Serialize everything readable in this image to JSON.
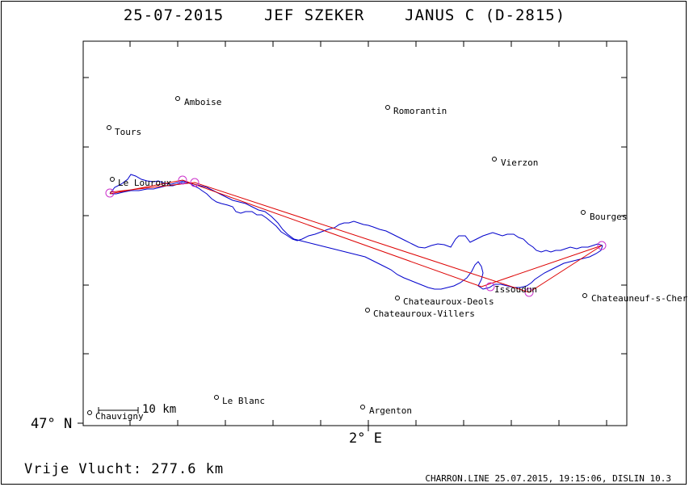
{
  "header": {
    "date": "25-07-2015",
    "pilot": "JEF SZEKER",
    "glider": "JANUS C (D-2815)"
  },
  "map": {
    "lat_label": "47° N",
    "lon_label": "2° E",
    "scale_label": "10 km",
    "cities": [
      {
        "name": "Amboise"
      },
      {
        "name": "Romorantin"
      },
      {
        "name": "Tours"
      },
      {
        "name": "Vierzon"
      },
      {
        "name": "Le Louroux"
      },
      {
        "name": "Bourges"
      },
      {
        "name": "Issoudun"
      },
      {
        "name": "Chateauneuf-s-Cher"
      },
      {
        "name": "Chateauroux-Deols"
      },
      {
        "name": "Chateauroux-Villers"
      },
      {
        "name": "Le Blanc"
      },
      {
        "name": "Argenton"
      },
      {
        "name": "Chauvigny"
      }
    ],
    "colors": {
      "track": "#0000cc",
      "task": "#dd0000",
      "turnpoint": "#cc33cc",
      "axes": "#000000"
    }
  },
  "footer": {
    "distance_text": "Vrije Vlucht:  277.6 km",
    "info": "CHARRON.LINE 25.07.2015, 19:15:06, DISLIN 10.3"
  }
}
